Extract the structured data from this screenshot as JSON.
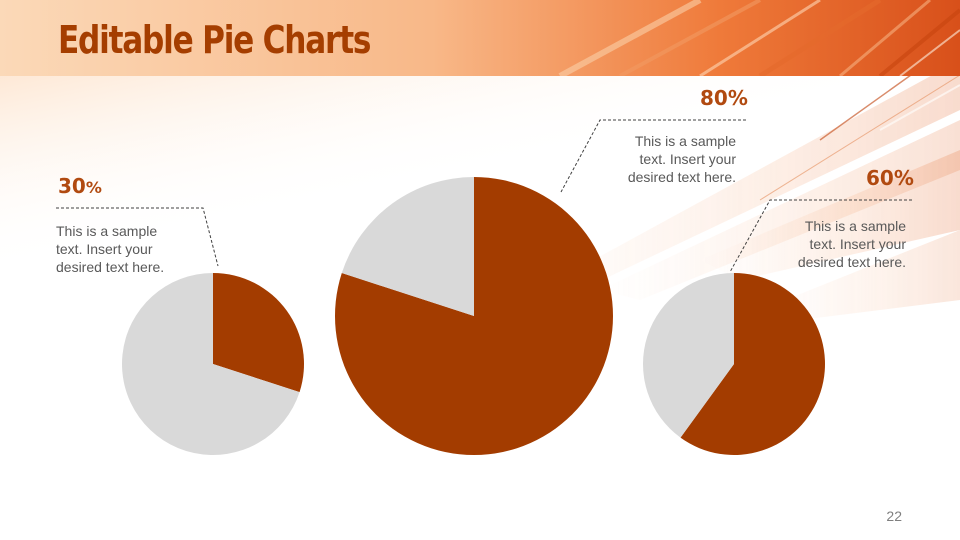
{
  "slide": {
    "title": "Editable Pie Charts",
    "page_number": "22"
  },
  "colors": {
    "accent": "#a33c00",
    "remainder": "#d9d9d9",
    "title": "#a53e00",
    "text": "#595959"
  },
  "chart_data": [
    {
      "type": "pie",
      "label_value": "30",
      "label_unit": "%",
      "description": "This is a sample text. Insert your desired text here.",
      "slices": [
        {
          "value": 30,
          "color": "#a33c00"
        },
        {
          "value": 70,
          "color": "#d9d9d9"
        }
      ]
    },
    {
      "type": "pie",
      "label_value": "80%",
      "label_unit": "",
      "description": "This is a sample text. Insert your desired text here.",
      "slices": [
        {
          "value": 80,
          "color": "#a33c00"
        },
        {
          "value": 20,
          "color": "#d9d9d9"
        }
      ]
    },
    {
      "type": "pie",
      "label_value": "60%",
      "label_unit": "",
      "description": "This is a sample text. Insert your desired text here.",
      "slices": [
        {
          "value": 60,
          "color": "#a33c00"
        },
        {
          "value": 40,
          "color": "#d9d9d9"
        }
      ]
    }
  ]
}
